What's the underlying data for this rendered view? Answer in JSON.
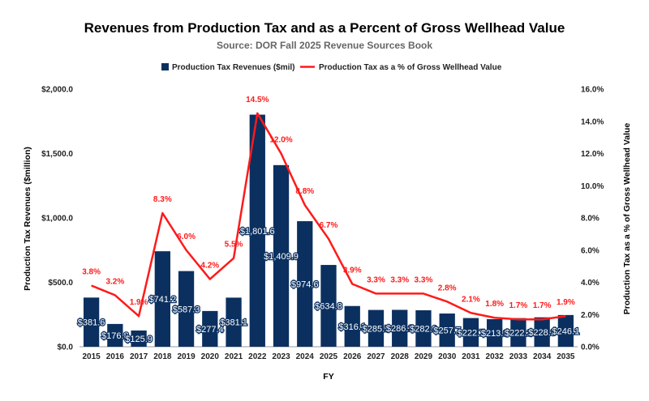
{
  "chart_data": {
    "type": "bar",
    "title": "Revenues from Production Tax and as a Percent of Gross Wellhead Value",
    "subtitle": "Source: DOR Fall 2025 Revenue Sources Book",
    "xlabel": "FY",
    "ylabel": "Production Tax Revenues ($million)",
    "y2label": "Production Tax as a % of Gross Wellhead Value",
    "ylim": [
      0,
      2000
    ],
    "y2lim": [
      0,
      16
    ],
    "yticks": [
      "$0.0",
      "$500.0",
      "$1,000.0",
      "$1,500.0",
      "$2,000.0"
    ],
    "y2ticks": [
      "0.0%",
      "2.0%",
      "4.0%",
      "6.0%",
      "8.0%",
      "10.0%",
      "12.0%",
      "14.0%",
      "16.0%"
    ],
    "legend_position": "top",
    "categories": [
      "2015",
      "2016",
      "2017",
      "2018",
      "2019",
      "2020",
      "2021",
      "2022",
      "2023",
      "2024",
      "2025",
      "2026",
      "2027",
      "2028",
      "2029",
      "2030",
      "2031",
      "2032",
      "2033",
      "2034",
      "2035"
    ],
    "series": [
      {
        "name": "Production Tax Revenues ($mil)",
        "type": "bar",
        "color": "#0b3060",
        "values": [
          381.6,
          176.8,
          125.9,
          741.2,
          587.3,
          277.4,
          381.1,
          1801.6,
          1409.9,
          974.6,
          634.8,
          316.1,
          285.5,
          286.3,
          282.9,
          257.7,
          222.7,
          213.8,
          222.2,
          228.3,
          246.1
        ],
        "labels": [
          "$381.6",
          "$176.8",
          "$125.9",
          "$741.2",
          "$587.3",
          "$277.4",
          "$381.1",
          "$1,801.6",
          "$1,409.9",
          "$974.6",
          "$634.8",
          "$316.1",
          "$285.5",
          "$286.3",
          "$282.9",
          "$257.7",
          "$222.7",
          "$213.8",
          "$222.2",
          "$228.3",
          "$246.1"
        ]
      },
      {
        "name": "Production Tax as a % of Gross Wellhead Value",
        "type": "line",
        "color": "#ff1a1a",
        "axis": "right",
        "values": [
          3.8,
          3.2,
          1.9,
          8.3,
          6.0,
          4.2,
          5.5,
          14.5,
          12.0,
          8.8,
          6.7,
          3.9,
          3.3,
          3.3,
          3.3,
          2.8,
          2.1,
          1.8,
          1.7,
          1.7,
          1.9
        ],
        "labels": [
          "3.8%",
          "3.2%",
          "1.9%",
          "8.3%",
          "6.0%",
          "4.2%",
          "5.5%",
          "14.5%",
          "12.0%",
          "8.8%",
          "6.7%",
          "3.9%",
          "3.3%",
          "3.3%",
          "3.3%",
          "2.8%",
          "2.1%",
          "1.8%",
          "1.7%",
          "1.7%",
          "1.9%"
        ]
      }
    ]
  }
}
